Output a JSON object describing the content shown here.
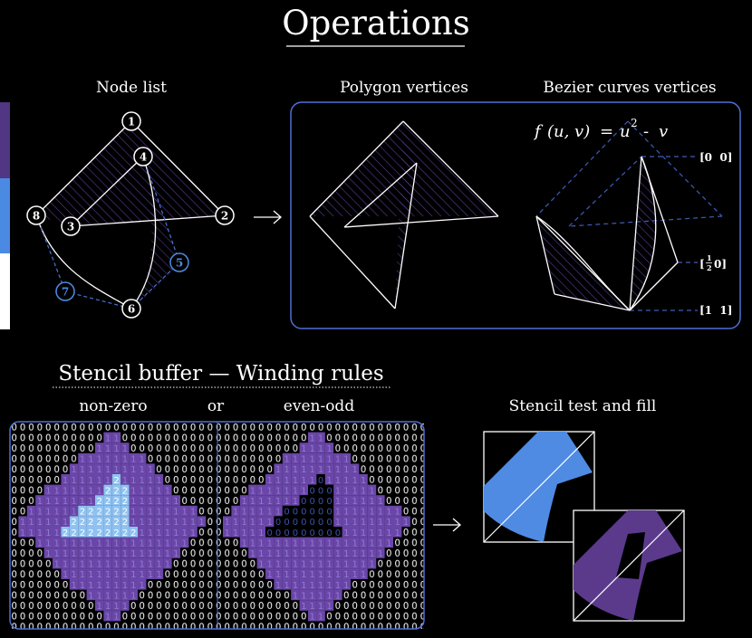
{
  "title": "Operations",
  "sections": {
    "node_list": "Node list",
    "polygon_vertices": "Polygon vertices",
    "bezier_vertices": "Bezier curves vertices",
    "stencil_title": "Stencil buffer — Winding rules",
    "non_zero": "non-zero",
    "or": "or",
    "even_odd": "even-odd",
    "stencil_test": "Stencil test and fill"
  },
  "nodes": [
    {
      "label": "1",
      "style": "white"
    },
    {
      "label": "2",
      "style": "white"
    },
    {
      "label": "3",
      "style": "white"
    },
    {
      "label": "4",
      "style": "white"
    },
    {
      "label": "5",
      "style": "blue"
    },
    {
      "label": "6",
      "style": "white"
    },
    {
      "label": "7",
      "style": "blue"
    },
    {
      "label": "8",
      "style": "white"
    }
  ],
  "formula": {
    "func": "f",
    "args": "(u, v)",
    "eq": "=",
    "u": "u",
    "exp": "2",
    "minus": "-",
    "v": "v"
  },
  "uv_labels": {
    "top": "[0  0]",
    "mid_bracket_open": "[",
    "mid_num": "1",
    "mid_den": "2",
    "mid_rest": "0]",
    "bottom": "[1  1]"
  },
  "stencil_digits": {
    "zero": "0",
    "one": "1",
    "two": "2"
  },
  "colors": {
    "background": "#000000",
    "purple": "#5b3a8c",
    "purple_light": "#7d55b8",
    "blue": "#4f8be3",
    "light_blue": "#8fc2f2",
    "white": "#ffffff",
    "panel_border": "#4f6fd6"
  },
  "legend_strip": [
    "#503683",
    "#4b8ae2",
    "#ffffff"
  ]
}
